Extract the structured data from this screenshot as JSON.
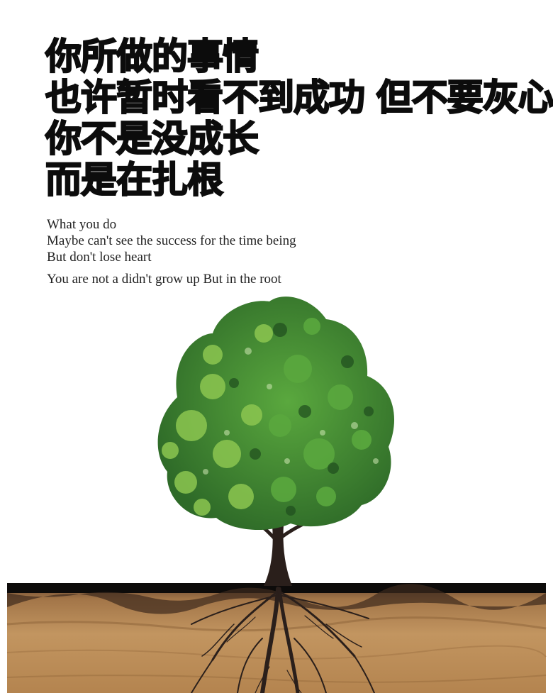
{
  "headline": {
    "lines": [
      "你所做的事情",
      "也许暂时看不到成功 但不要灰心",
      "你不是没成长",
      "而是在扎根"
    ]
  },
  "english": {
    "lines": [
      "What you do",
      "Maybe can't see the success for the time being",
      "But don't lose heart",
      "You are not a didn't grow up  But in the root"
    ]
  },
  "colors": {
    "text": "#0c0c0c",
    "leaf_dark": "#2f6f2a",
    "leaf_mid": "#4f9a3a",
    "leaf_light": "#8cc650",
    "trunk": "#2a1f1b",
    "soil_top": "#0d0b0a",
    "soil": "#b88a58"
  }
}
